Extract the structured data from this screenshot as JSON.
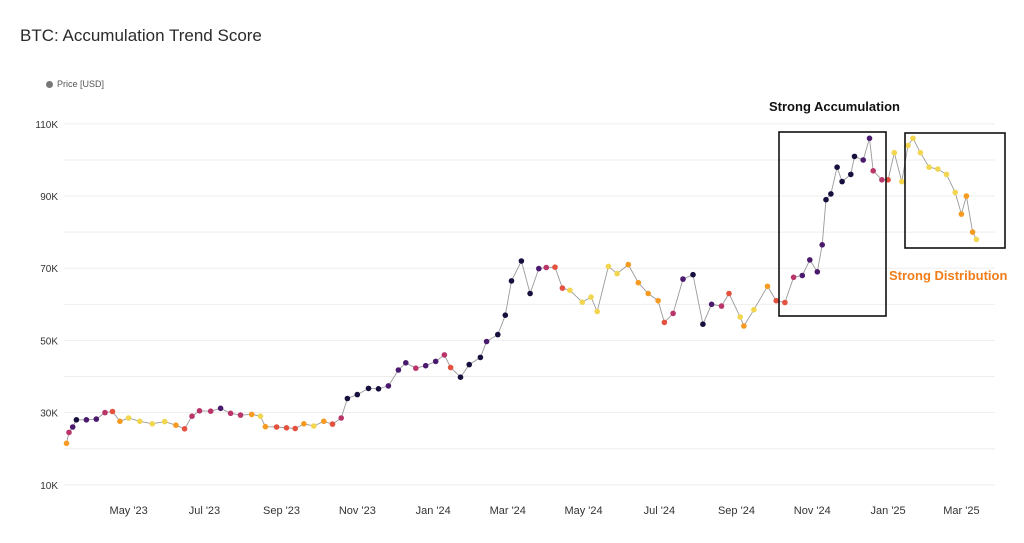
{
  "header": {
    "title": "BTC: Accumulation Trend Score"
  },
  "legend": {
    "label": "Price [USD]"
  },
  "colors": {
    "strong_accumulation": "#170f3d",
    "accumulation": "#4a1a6e",
    "neutral_purple": "#7a2a7a",
    "magenta": "#b9356a",
    "red_orange": "#e4513f",
    "orange": "#f79a22",
    "yellow": "#f2d64f",
    "grid": "#eeeeee",
    "line": "#999999"
  },
  "annotations": {
    "accumulation_label": "Strong Accumulation",
    "distribution_label": "Strong Distribution"
  },
  "chart_data": {
    "type": "scatter",
    "title": "BTC: Accumulation Trend Score",
    "xlabel": "",
    "ylabel": "",
    "y_ticks": [
      {
        "value": 10000,
        "label": "10K"
      },
      {
        "value": 30000,
        "label": "30K"
      },
      {
        "value": 50000,
        "label": "50K"
      },
      {
        "value": 70000,
        "label": "70K"
      },
      {
        "value": 90000,
        "label": "90K"
      },
      {
        "value": 110000,
        "label": "110K"
      }
    ],
    "x_ticks": [
      {
        "date": "2023-05-01",
        "label": "May '23"
      },
      {
        "date": "2023-07-01",
        "label": "Jul '23"
      },
      {
        "date": "2023-09-01",
        "label": "Sep '23"
      },
      {
        "date": "2023-11-01",
        "label": "Nov '23"
      },
      {
        "date": "2024-01-01",
        "label": "Jan '24"
      },
      {
        "date": "2024-03-01",
        "label": "Mar '24"
      },
      {
        "date": "2024-05-01",
        "label": "May '24"
      },
      {
        "date": "2024-07-01",
        "label": "Jul '24"
      },
      {
        "date": "2024-09-01",
        "label": "Sep '24"
      },
      {
        "date": "2024-11-01",
        "label": "Nov '24"
      },
      {
        "date": "2025-01-01",
        "label": "Jan '25"
      },
      {
        "date": "2025-03-01",
        "label": "Mar '25"
      }
    ],
    "y_range": [
      8000,
      118000
    ],
    "x_range": [
      "2023-03-10",
      "2025-03-28"
    ],
    "grid": true,
    "legend_position": "top-left",
    "series": [
      {
        "name": "Price [USD]",
        "points": [
          [
            "2023-03-12",
            21500,
            "orange"
          ],
          [
            "2023-03-14",
            24500,
            "magenta"
          ],
          [
            "2023-03-17",
            26000,
            "accumulation"
          ],
          [
            "2023-03-20",
            28000,
            "strong_accumulation"
          ],
          [
            "2023-03-28",
            28000,
            "accumulation"
          ],
          [
            "2023-04-05",
            28200,
            "accumulation"
          ],
          [
            "2023-04-12",
            30000,
            "magenta"
          ],
          [
            "2023-04-18",
            30300,
            "red_orange"
          ],
          [
            "2023-04-24",
            27600,
            "orange"
          ],
          [
            "2023-05-01",
            28500,
            "yellow"
          ],
          [
            "2023-05-10",
            27600,
            "yellow"
          ],
          [
            "2023-05-20",
            26900,
            "yellow"
          ],
          [
            "2023-05-30",
            27500,
            "yellow"
          ],
          [
            "2023-06-08",
            26500,
            "orange"
          ],
          [
            "2023-06-15",
            25500,
            "red_orange"
          ],
          [
            "2023-06-21",
            29000,
            "magenta"
          ],
          [
            "2023-06-27",
            30500,
            "magenta"
          ],
          [
            "2023-07-06",
            30400,
            "magenta"
          ],
          [
            "2023-07-14",
            31200,
            "accumulation"
          ],
          [
            "2023-07-22",
            29800,
            "magenta"
          ],
          [
            "2023-07-30",
            29300,
            "magenta"
          ],
          [
            "2023-08-08",
            29500,
            "orange"
          ],
          [
            "2023-08-15",
            29000,
            "yellow"
          ],
          [
            "2023-08-19",
            26100,
            "orange"
          ],
          [
            "2023-08-28",
            26000,
            "red_orange"
          ],
          [
            "2023-09-05",
            25800,
            "red_orange"
          ],
          [
            "2023-09-12",
            25600,
            "red_orange"
          ],
          [
            "2023-09-19",
            26900,
            "orange"
          ],
          [
            "2023-09-27",
            26300,
            "yellow"
          ],
          [
            "2023-10-05",
            27600,
            "orange"
          ],
          [
            "2023-10-12",
            26800,
            "red_orange"
          ],
          [
            "2023-10-19",
            28500,
            "magenta"
          ],
          [
            "2023-10-24",
            33900,
            "strong_accumulation"
          ],
          [
            "2023-11-01",
            35000,
            "strong_accumulation"
          ],
          [
            "2023-11-10",
            36700,
            "strong_accumulation"
          ],
          [
            "2023-11-18",
            36600,
            "strong_accumulation"
          ],
          [
            "2023-11-26",
            37400,
            "accumulation"
          ],
          [
            "2023-12-04",
            41800,
            "accumulation"
          ],
          [
            "2023-12-10",
            43800,
            "accumulation"
          ],
          [
            "2023-12-18",
            42300,
            "magenta"
          ],
          [
            "2023-12-26",
            43000,
            "accumulation"
          ],
          [
            "2024-01-03",
            44200,
            "accumulation"
          ],
          [
            "2024-01-10",
            46000,
            "magenta"
          ],
          [
            "2024-01-15",
            42500,
            "red_orange"
          ],
          [
            "2024-01-23",
            39800,
            "strong_accumulation"
          ],
          [
            "2024-01-30",
            43300,
            "strong_accumulation"
          ],
          [
            "2024-02-08",
            45300,
            "strong_accumulation"
          ],
          [
            "2024-02-13",
            49700,
            "accumulation"
          ],
          [
            "2024-02-22",
            51600,
            "strong_accumulation"
          ],
          [
            "2024-02-28",
            57000,
            "strong_accumulation"
          ],
          [
            "2024-03-04",
            66500,
            "strong_accumulation"
          ],
          [
            "2024-03-12",
            72000,
            "strong_accumulation"
          ],
          [
            "2024-03-19",
            63000,
            "strong_accumulation"
          ],
          [
            "2024-03-26",
            69900,
            "accumulation"
          ],
          [
            "2024-04-01",
            70200,
            "magenta"
          ],
          [
            "2024-04-08",
            70300,
            "red_orange"
          ],
          [
            "2024-04-14",
            64500,
            "red_orange"
          ],
          [
            "2024-04-20",
            63900,
            "yellow"
          ],
          [
            "2024-04-30",
            60600,
            "yellow"
          ],
          [
            "2024-05-07",
            62000,
            "yellow"
          ],
          [
            "2024-05-12",
            58000,
            "yellow"
          ],
          [
            "2024-05-21",
            70500,
            "yellow"
          ],
          [
            "2024-05-28",
            68500,
            "yellow"
          ],
          [
            "2024-06-06",
            71000,
            "orange"
          ],
          [
            "2024-06-14",
            66000,
            "orange"
          ],
          [
            "2024-06-22",
            63000,
            "orange"
          ],
          [
            "2024-06-30",
            61000,
            "orange"
          ],
          [
            "2024-07-05",
            55000,
            "red_orange"
          ],
          [
            "2024-07-12",
            57500,
            "magenta"
          ],
          [
            "2024-07-20",
            67000,
            "accumulation"
          ],
          [
            "2024-07-28",
            68200,
            "strong_accumulation"
          ],
          [
            "2024-08-05",
            54500,
            "strong_accumulation"
          ],
          [
            "2024-08-12",
            60000,
            "accumulation"
          ],
          [
            "2024-08-20",
            59500,
            "magenta"
          ],
          [
            "2024-08-26",
            63000,
            "red_orange"
          ],
          [
            "2024-09-04",
            56500,
            "yellow"
          ],
          [
            "2024-09-07",
            54000,
            "orange"
          ],
          [
            "2024-09-15",
            58500,
            "yellow"
          ],
          [
            "2024-09-26",
            65000,
            "orange"
          ],
          [
            "2024-10-03",
            61000,
            "red_orange"
          ],
          [
            "2024-10-10",
            60500,
            "red_orange"
          ],
          [
            "2024-10-17",
            67500,
            "magenta"
          ],
          [
            "2024-10-24",
            68000,
            "accumulation"
          ],
          [
            "2024-10-30",
            72300,
            "accumulation"
          ],
          [
            "2024-11-05",
            69000,
            "accumulation"
          ],
          [
            "2024-11-09",
            76500,
            "accumulation"
          ],
          [
            "2024-11-12",
            89000,
            "strong_accumulation"
          ],
          [
            "2024-11-16",
            90600,
            "strong_accumulation"
          ],
          [
            "2024-11-21",
            98000,
            "strong_accumulation"
          ],
          [
            "2024-11-25",
            94000,
            "strong_accumulation"
          ],
          [
            "2024-12-02",
            96000,
            "strong_accumulation"
          ],
          [
            "2024-12-05",
            101000,
            "strong_accumulation"
          ],
          [
            "2024-12-12",
            100000,
            "accumulation"
          ],
          [
            "2024-12-17",
            106000,
            "accumulation"
          ],
          [
            "2024-12-20",
            97000,
            "magenta"
          ],
          [
            "2024-12-27",
            94500,
            "magenta"
          ],
          [
            "2025-01-01",
            94500,
            "red_orange"
          ],
          [
            "2025-01-06",
            102000,
            "yellow"
          ],
          [
            "2025-01-12",
            94000,
            "yellow"
          ],
          [
            "2025-01-17",
            104000,
            "yellow"
          ],
          [
            "2025-01-21",
            106000,
            "yellow"
          ],
          [
            "2025-01-27",
            102000,
            "yellow"
          ],
          [
            "2025-02-03",
            98000,
            "yellow"
          ],
          [
            "2025-02-10",
            97500,
            "yellow"
          ],
          [
            "2025-02-17",
            96000,
            "yellow"
          ],
          [
            "2025-02-24",
            91000,
            "yellow"
          ],
          [
            "2025-03-01",
            85000,
            "orange"
          ],
          [
            "2025-03-05",
            90000,
            "orange"
          ],
          [
            "2025-03-10",
            80000,
            "orange"
          ],
          [
            "2025-03-13",
            78000,
            "yellow"
          ]
        ]
      }
    ]
  }
}
